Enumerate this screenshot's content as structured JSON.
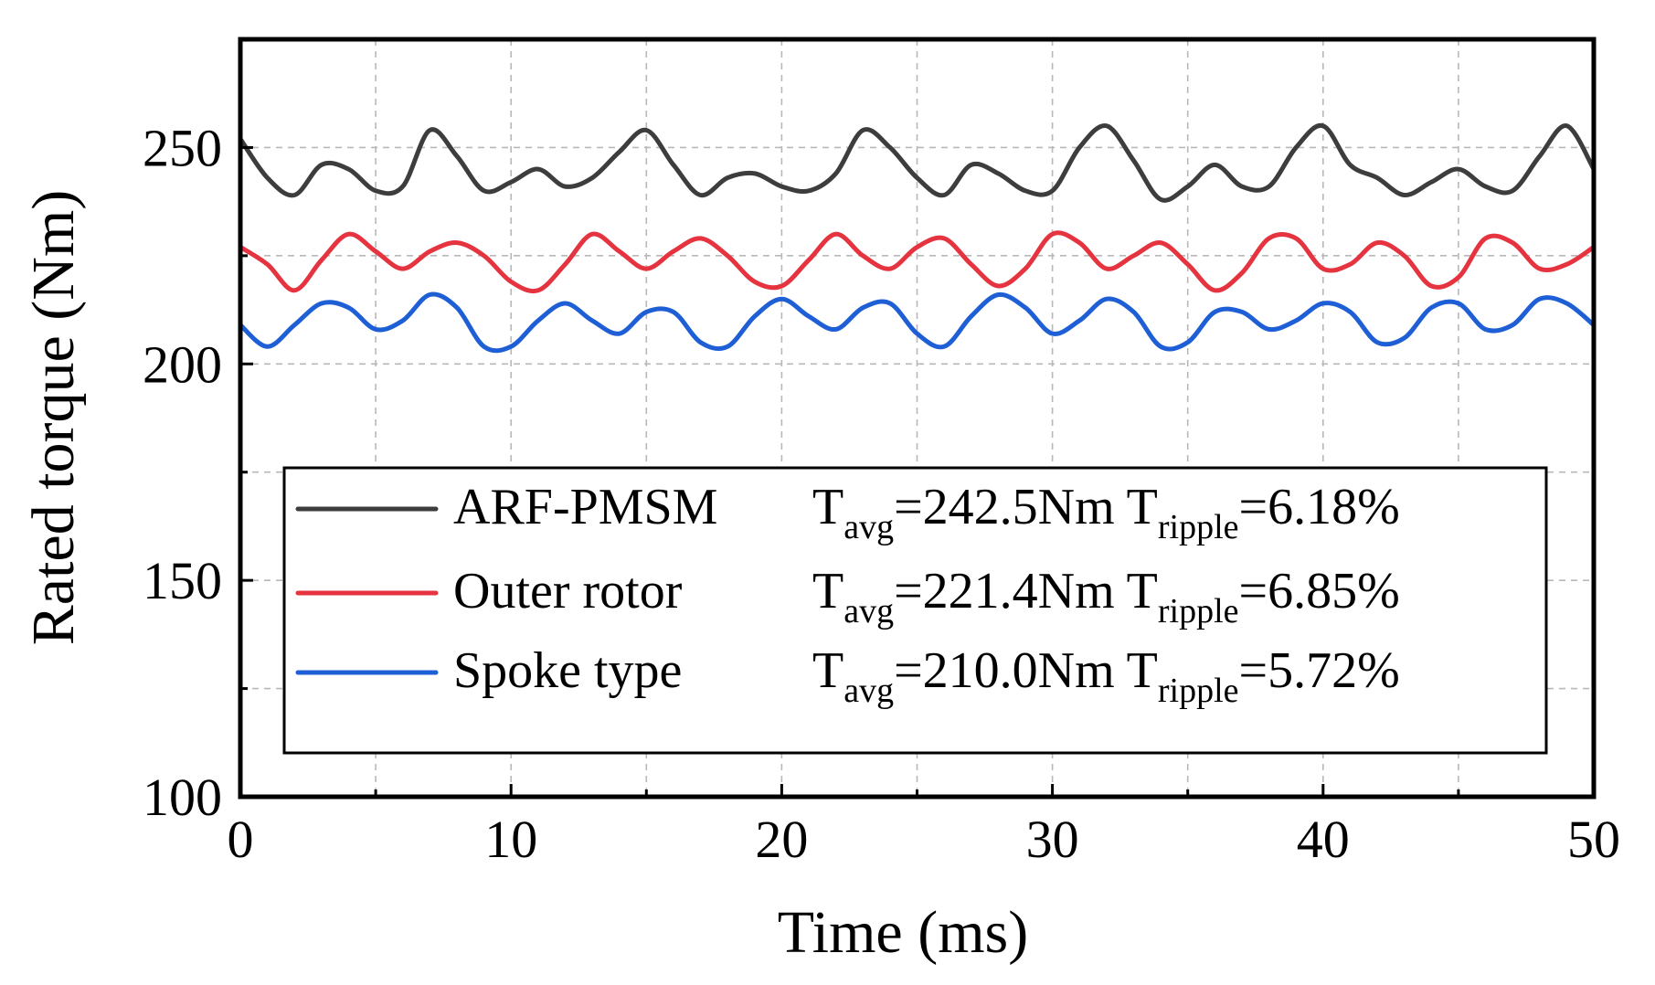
{
  "chart_data": {
    "type": "line",
    "title": "",
    "xlabel": "Time (ms)",
    "ylabel": "Rated torque (Nm)",
    "xlim": [
      0,
      50
    ],
    "ylim": [
      100,
      275
    ],
    "x_ticks": [
      0,
      10,
      20,
      30,
      40,
      50
    ],
    "y_ticks": [
      100,
      150,
      200,
      250
    ],
    "x_tick_labels": [
      "0",
      "10",
      "20",
      "30",
      "40",
      "50"
    ],
    "y_tick_labels": [
      "100",
      "150",
      "200",
      "250"
    ],
    "grid": true,
    "legend_position": "bottom-center",
    "x": [
      0,
      1,
      2,
      3,
      4,
      5,
      6,
      7,
      8,
      9,
      10,
      11,
      12,
      13,
      14,
      15,
      16,
      17,
      18,
      19,
      20,
      21,
      22,
      23,
      24,
      25,
      26,
      27,
      28,
      29,
      30,
      31,
      32,
      33,
      34,
      35,
      36,
      37,
      38,
      39,
      40,
      41,
      42,
      43,
      44,
      45,
      46,
      47,
      48,
      49,
      50
    ],
    "series": [
      {
        "name": "ARF-PMSM",
        "color": "#3d3d3d",
        "legend_avg_value": "=242.5Nm",
        "legend_ripple_value": "=6.18%",
        "values": [
          252,
          243,
          239,
          246,
          245,
          240,
          241,
          254,
          248,
          240,
          242,
          245,
          241,
          243,
          249,
          254,
          246,
          239,
          243,
          244,
          241,
          240,
          244,
          254,
          250,
          243,
          239,
          246,
          244,
          240,
          240,
          250,
          255,
          247,
          238,
          241,
          246,
          241,
          241,
          250,
          255,
          246,
          243,
          239,
          242,
          245,
          241,
          240,
          248,
          255,
          245
        ]
      },
      {
        "name": "Outer rotor",
        "color": "#e5343f",
        "legend_avg_value": "=221.4Nm",
        "legend_ripple_value": "=6.85%",
        "values": [
          227,
          223,
          217,
          224,
          230,
          226,
          222,
          226,
          228,
          225,
          219,
          217,
          223,
          230,
          226,
          222,
          226,
          229,
          225,
          219,
          218,
          224,
          230,
          225,
          222,
          227,
          229,
          223,
          218,
          222,
          230,
          228,
          222,
          225,
          228,
          223,
          217,
          221,
          229,
          229,
          222,
          223,
          228,
          225,
          218,
          220,
          229,
          228,
          222,
          223,
          227
        ]
      },
      {
        "name": "Spoke type",
        "color": "#1f5fd6",
        "legend_avg_value": "=210.0Nm",
        "legend_ripple_value": "=5.72%",
        "values": [
          209,
          204,
          209,
          214,
          213,
          208,
          210,
          216,
          213,
          204,
          204,
          210,
          214,
          210,
          207,
          212,
          212,
          205,
          204,
          211,
          215,
          211,
          208,
          213,
          214,
          207,
          204,
          211,
          216,
          213,
          207,
          210,
          215,
          212,
          204,
          205,
          212,
          212,
          208,
          210,
          214,
          212,
          205,
          206,
          213,
          214,
          208,
          209,
          215,
          214,
          209
        ]
      }
    ]
  },
  "legend": {
    "avg_symbol": "T",
    "avg_subscript": "avg",
    "ripple_symbol": "T",
    "ripple_subscript": "ripple"
  }
}
